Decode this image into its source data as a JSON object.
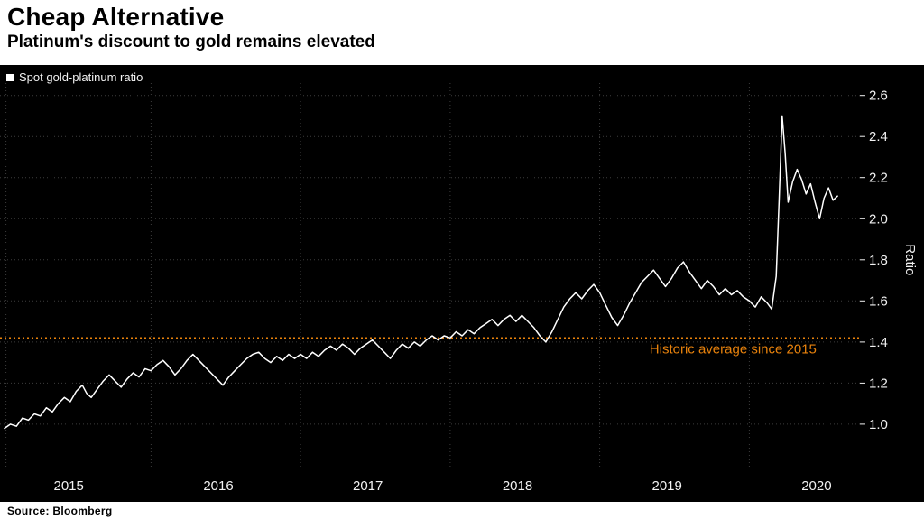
{
  "header": {
    "title": "Cheap Alternative",
    "subtitle": "Platinum's discount to gold remains elevated"
  },
  "legend": {
    "label": "Spot gold-platinum ratio"
  },
  "source": "Source: Bloomberg",
  "axis": {
    "ylabel": "Ratio"
  },
  "colors": {
    "background": "#000000",
    "line": "#ffffff",
    "grid": "#3d3d3d",
    "annotation": "#e8820c",
    "axis_text": "#f2f2f2"
  },
  "chart_data": {
    "type": "line",
    "title": "Cheap Alternative",
    "subtitle": "Platinum's discount to gold remains elevated",
    "series_name": "Spot gold-platinum ratio",
    "x_ticks": [
      2015,
      2016,
      2017,
      2018,
      2019,
      2020
    ],
    "x_grid": [
      2015.03,
      2016,
      2017,
      2018,
      2019,
      2020
    ],
    "y_ticks": [
      1.0,
      1.2,
      1.4,
      1.6,
      1.8,
      2.0,
      2.2,
      2.4,
      2.6
    ],
    "x_range": [
      2014.99,
      2020.74
    ],
    "y_range": [
      0.78,
      2.66
    ],
    "grid": true,
    "legend_position": "top-left",
    "average_line": {
      "value": 1.42,
      "label": "Historic average since 2015",
      "label_x": 2020.45
    },
    "points": [
      [
        2015.02,
        0.98
      ],
      [
        2015.06,
        1.0
      ],
      [
        2015.1,
        0.99
      ],
      [
        2015.14,
        1.03
      ],
      [
        2015.18,
        1.02
      ],
      [
        2015.22,
        1.05
      ],
      [
        2015.26,
        1.04
      ],
      [
        2015.3,
        1.08
      ],
      [
        2015.34,
        1.06
      ],
      [
        2015.38,
        1.1
      ],
      [
        2015.42,
        1.13
      ],
      [
        2015.46,
        1.11
      ],
      [
        2015.5,
        1.16
      ],
      [
        2015.54,
        1.19
      ],
      [
        2015.57,
        1.15
      ],
      [
        2015.6,
        1.13
      ],
      [
        2015.64,
        1.17
      ],
      [
        2015.68,
        1.21
      ],
      [
        2015.72,
        1.24
      ],
      [
        2015.76,
        1.21
      ],
      [
        2015.8,
        1.18
      ],
      [
        2015.84,
        1.22
      ],
      [
        2015.88,
        1.25
      ],
      [
        2015.92,
        1.23
      ],
      [
        2015.96,
        1.27
      ],
      [
        2016.0,
        1.26
      ],
      [
        2016.04,
        1.29
      ],
      [
        2016.08,
        1.31
      ],
      [
        2016.12,
        1.28
      ],
      [
        2016.16,
        1.24
      ],
      [
        2016.2,
        1.27
      ],
      [
        2016.24,
        1.31
      ],
      [
        2016.28,
        1.34
      ],
      [
        2016.32,
        1.31
      ],
      [
        2016.36,
        1.28
      ],
      [
        2016.4,
        1.25
      ],
      [
        2016.44,
        1.22
      ],
      [
        2016.48,
        1.19
      ],
      [
        2016.52,
        1.23
      ],
      [
        2016.56,
        1.26
      ],
      [
        2016.6,
        1.29
      ],
      [
        2016.64,
        1.32
      ],
      [
        2016.68,
        1.34
      ],
      [
        2016.72,
        1.35
      ],
      [
        2016.76,
        1.32
      ],
      [
        2016.8,
        1.3
      ],
      [
        2016.84,
        1.33
      ],
      [
        2016.88,
        1.31
      ],
      [
        2016.92,
        1.34
      ],
      [
        2016.96,
        1.32
      ],
      [
        2017.0,
        1.34
      ],
      [
        2017.04,
        1.32
      ],
      [
        2017.08,
        1.35
      ],
      [
        2017.12,
        1.33
      ],
      [
        2017.16,
        1.36
      ],
      [
        2017.2,
        1.38
      ],
      [
        2017.24,
        1.36
      ],
      [
        2017.28,
        1.39
      ],
      [
        2017.32,
        1.37
      ],
      [
        2017.36,
        1.34
      ],
      [
        2017.4,
        1.37
      ],
      [
        2017.44,
        1.39
      ],
      [
        2017.48,
        1.41
      ],
      [
        2017.52,
        1.38
      ],
      [
        2017.56,
        1.35
      ],
      [
        2017.6,
        1.32
      ],
      [
        2017.64,
        1.36
      ],
      [
        2017.68,
        1.39
      ],
      [
        2017.72,
        1.37
      ],
      [
        2017.76,
        1.4
      ],
      [
        2017.8,
        1.38
      ],
      [
        2017.84,
        1.41
      ],
      [
        2017.88,
        1.43
      ],
      [
        2017.92,
        1.41
      ],
      [
        2017.96,
        1.43
      ],
      [
        2018.0,
        1.42
      ],
      [
        2018.04,
        1.45
      ],
      [
        2018.08,
        1.43
      ],
      [
        2018.12,
        1.46
      ],
      [
        2018.16,
        1.44
      ],
      [
        2018.2,
        1.47
      ],
      [
        2018.24,
        1.49
      ],
      [
        2018.28,
        1.51
      ],
      [
        2018.32,
        1.48
      ],
      [
        2018.36,
        1.51
      ],
      [
        2018.4,
        1.53
      ],
      [
        2018.44,
        1.5
      ],
      [
        2018.48,
        1.53
      ],
      [
        2018.52,
        1.5
      ],
      [
        2018.56,
        1.47
      ],
      [
        2018.6,
        1.43
      ],
      [
        2018.64,
        1.4
      ],
      [
        2018.68,
        1.45
      ],
      [
        2018.72,
        1.51
      ],
      [
        2018.76,
        1.57
      ],
      [
        2018.8,
        1.61
      ],
      [
        2018.84,
        1.64
      ],
      [
        2018.88,
        1.61
      ],
      [
        2018.92,
        1.65
      ],
      [
        2018.96,
        1.68
      ],
      [
        2019.0,
        1.64
      ],
      [
        2019.04,
        1.58
      ],
      [
        2019.08,
        1.52
      ],
      [
        2019.12,
        1.48
      ],
      [
        2019.16,
        1.53
      ],
      [
        2019.2,
        1.59
      ],
      [
        2019.24,
        1.64
      ],
      [
        2019.28,
        1.69
      ],
      [
        2019.32,
        1.72
      ],
      [
        2019.36,
        1.75
      ],
      [
        2019.4,
        1.71
      ],
      [
        2019.44,
        1.67
      ],
      [
        2019.48,
        1.71
      ],
      [
        2019.52,
        1.76
      ],
      [
        2019.56,
        1.79
      ],
      [
        2019.6,
        1.74
      ],
      [
        2019.64,
        1.7
      ],
      [
        2019.68,
        1.66
      ],
      [
        2019.72,
        1.7
      ],
      [
        2019.76,
        1.67
      ],
      [
        2019.8,
        1.63
      ],
      [
        2019.84,
        1.66
      ],
      [
        2019.88,
        1.63
      ],
      [
        2019.92,
        1.65
      ],
      [
        2019.96,
        1.62
      ],
      [
        2020.0,
        1.6
      ],
      [
        2020.04,
        1.57
      ],
      [
        2020.08,
        1.62
      ],
      [
        2020.12,
        1.59
      ],
      [
        2020.15,
        1.56
      ],
      [
        2020.18,
        1.72
      ],
      [
        2020.2,
        2.1
      ],
      [
        2020.22,
        2.5
      ],
      [
        2020.24,
        2.32
      ],
      [
        2020.26,
        2.08
      ],
      [
        2020.29,
        2.18
      ],
      [
        2020.32,
        2.24
      ],
      [
        2020.35,
        2.19
      ],
      [
        2020.38,
        2.12
      ],
      [
        2020.41,
        2.17
      ],
      [
        2020.44,
        2.08
      ],
      [
        2020.47,
        2.0
      ],
      [
        2020.5,
        2.1
      ],
      [
        2020.53,
        2.15
      ],
      [
        2020.56,
        2.09
      ],
      [
        2020.59,
        2.11
      ]
    ]
  }
}
